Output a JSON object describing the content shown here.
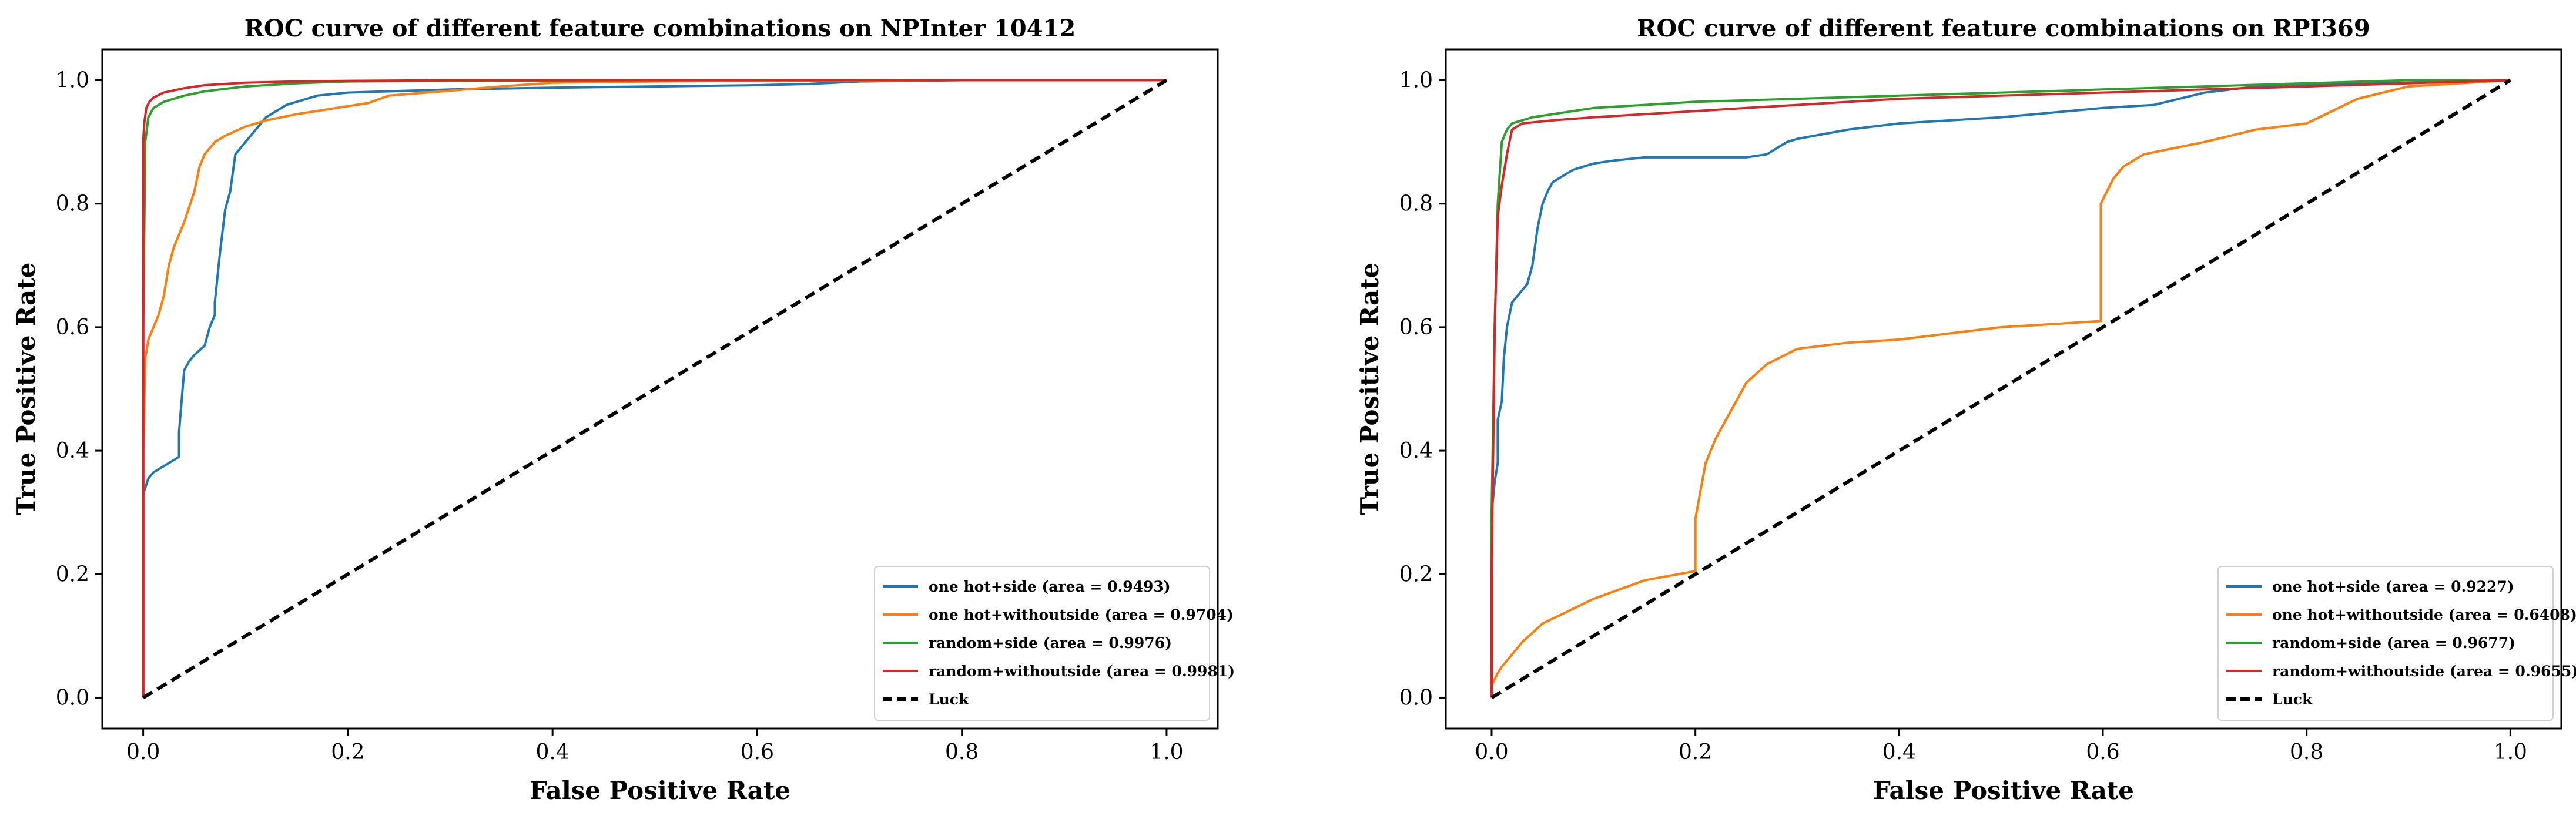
{
  "figure": {
    "charts": [
      {
        "type": "line",
        "title": "ROC curve of different feature combinations on NPInter 10412",
        "xlabel": "False Positive Rate",
        "ylabel": "True Positive Rate",
        "xlim": [
          -0.04,
          1.05
        ],
        "ylim": [
          -0.05,
          1.05
        ],
        "xticks": [
          "0.0",
          "0.2",
          "0.4",
          "0.6",
          "0.8",
          "1.0"
        ],
        "yticks": [
          "0.0",
          "0.2",
          "0.4",
          "0.6",
          "0.8",
          "1.0"
        ],
        "grid": false,
        "legend_position": "lower-right",
        "series": [
          {
            "name": "one hot+side (area = 0.9493)",
            "color": "#1f77b4",
            "x": [
              0,
              0,
              0.002,
              0.005,
              0.01,
              0.02,
              0.03,
              0.035,
              0.035,
              0.04,
              0.045,
              0.05,
              0.06,
              0.065,
              0.07,
              0.07,
              0.075,
              0.08,
              0.085,
              0.09,
              0.1,
              0.12,
              0.14,
              0.17,
              0.2,
              0.3,
              0.4,
              0.5,
              0.6,
              0.65,
              0.7,
              0.8,
              1.0
            ],
            "y": [
              0,
              0.33,
              0.34,
              0.355,
              0.365,
              0.375,
              0.385,
              0.39,
              0.43,
              0.53,
              0.545,
              0.555,
              0.57,
              0.6,
              0.62,
              0.64,
              0.72,
              0.79,
              0.82,
              0.88,
              0.9,
              0.94,
              0.96,
              0.975,
              0.98,
              0.985,
              0.988,
              0.99,
              0.992,
              0.994,
              0.998,
              1.0,
              1.0
            ]
          },
          {
            "name": "one hot+withoutside (area = 0.9704)",
            "color": "#ff7f0e",
            "x": [
              0,
              0,
              0.002,
              0.005,
              0.01,
              0.015,
              0.02,
              0.025,
              0.03,
              0.04,
              0.05,
              0.055,
              0.06,
              0.07,
              0.08,
              0.1,
              0.12,
              0.15,
              0.2,
              0.22,
              0.24,
              0.3,
              0.35,
              0.4,
              0.5,
              0.6,
              0.8,
              1.0
            ],
            "y": [
              0,
              0.4,
              0.55,
              0.58,
              0.6,
              0.62,
              0.65,
              0.7,
              0.73,
              0.77,
              0.82,
              0.86,
              0.88,
              0.9,
              0.91,
              0.925,
              0.935,
              0.945,
              0.958,
              0.963,
              0.975,
              0.983,
              0.99,
              0.996,
              0.998,
              0.999,
              1.0,
              1.0
            ]
          },
          {
            "name": "random+side (area = 0.9976)",
            "color": "#2ca02c",
            "x": [
              0,
              0,
              0.002,
              0.005,
              0.01,
              0.02,
              0.04,
              0.06,
              0.1,
              0.15,
              0.2,
              0.3,
              0.5,
              1.0
            ],
            "y": [
              0,
              0.6,
              0.9,
              0.94,
              0.955,
              0.965,
              0.975,
              0.982,
              0.99,
              0.995,
              0.998,
              0.999,
              1.0,
              1.0
            ]
          },
          {
            "name": "random+withoutside (area = 0.9981)",
            "color": "#d62728",
            "x": [
              0,
              0,
              0.001,
              0.003,
              0.006,
              0.01,
              0.02,
              0.04,
              0.06,
              0.1,
              0.15,
              0.2,
              0.3,
              1.0
            ],
            "y": [
              0,
              0.9,
              0.93,
              0.955,
              0.965,
              0.972,
              0.98,
              0.987,
              0.992,
              0.996,
              0.998,
              0.999,
              1.0,
              1.0
            ]
          },
          {
            "name": "Luck",
            "color": "#000000",
            "dashed": true,
            "x": [
              0,
              1
            ],
            "y": [
              0,
              1
            ]
          }
        ]
      },
      {
        "type": "line",
        "title": "ROC curve of different feature combinations on RPI369",
        "xlabel": "False Positive Rate",
        "ylabel": "True Positive Rate",
        "xlim": [
          -0.045,
          1.05
        ],
        "ylim": [
          -0.05,
          1.05
        ],
        "xticks": [
          "0.0",
          "0.2",
          "0.4",
          "0.6",
          "0.8",
          "1.0"
        ],
        "yticks": [
          "0.0",
          "0.2",
          "0.4",
          "0.6",
          "0.8",
          "1.0"
        ],
        "grid": false,
        "legend_position": "lower-right",
        "series": [
          {
            "name": "one hot+side (area = 0.9227)",
            "color": "#1f77b4",
            "x": [
              0,
              0,
              0.003,
              0.006,
              0.006,
              0.01,
              0.012,
              0.015,
              0.02,
              0.025,
              0.03,
              0.035,
              0.04,
              0.045,
              0.05,
              0.055,
              0.06,
              0.07,
              0.08,
              0.1,
              0.12,
              0.15,
              0.2,
              0.25,
              0.27,
              0.29,
              0.3,
              0.35,
              0.4,
              0.5,
              0.6,
              0.65,
              0.7,
              0.75,
              1.0
            ],
            "y": [
              0,
              0.3,
              0.35,
              0.38,
              0.45,
              0.48,
              0.55,
              0.6,
              0.64,
              0.65,
              0.66,
              0.67,
              0.7,
              0.76,
              0.8,
              0.82,
              0.835,
              0.845,
              0.855,
              0.865,
              0.87,
              0.875,
              0.875,
              0.875,
              0.88,
              0.9,
              0.905,
              0.92,
              0.93,
              0.94,
              0.955,
              0.96,
              0.98,
              0.99,
              1.0
            ]
          },
          {
            "name": "one hot+withoutside (area = 0.6408)",
            "color": "#ff7f0e",
            "x": [
              0,
              0,
              0.003,
              0.006,
              0.01,
              0.015,
              0.02,
              0.03,
              0.05,
              0.1,
              0.15,
              0.2,
              0.2,
              0.21,
              0.22,
              0.23,
              0.25,
              0.27,
              0.3,
              0.35,
              0.4,
              0.45,
              0.5,
              0.55,
              0.598,
              0.598,
              0.61,
              0.62,
              0.64,
              0.7,
              0.75,
              0.8,
              0.85,
              0.9,
              1.0
            ],
            "y": [
              0,
              0.02,
              0.03,
              0.04,
              0.05,
              0.06,
              0.07,
              0.09,
              0.12,
              0.16,
              0.19,
              0.205,
              0.29,
              0.38,
              0.42,
              0.45,
              0.51,
              0.54,
              0.565,
              0.575,
              0.58,
              0.59,
              0.6,
              0.605,
              0.61,
              0.8,
              0.84,
              0.86,
              0.88,
              0.9,
              0.92,
              0.93,
              0.97,
              0.99,
              1.0
            ]
          },
          {
            "name": "random+side (area = 0.9677)",
            "color": "#2ca02c",
            "x": [
              0,
              0,
              0.003,
              0.006,
              0.01,
              0.015,
              0.02,
              0.04,
              0.06,
              0.1,
              0.15,
              0.2,
              0.3,
              0.4,
              0.5,
              0.6,
              0.7,
              0.8,
              0.9,
              1.0
            ],
            "y": [
              0,
              0.3,
              0.6,
              0.8,
              0.9,
              0.92,
              0.93,
              0.94,
              0.945,
              0.955,
              0.96,
              0.965,
              0.97,
              0.975,
              0.98,
              0.985,
              0.99,
              0.995,
              1.0,
              1.0
            ]
          },
          {
            "name": "random+withoutside (area = 0.9655)",
            "color": "#d62728",
            "x": [
              0,
              0,
              0.003,
              0.006,
              0.01,
              0.015,
              0.02,
              0.03,
              0.06,
              0.1,
              0.2,
              0.25,
              0.3,
              0.4,
              0.5,
              0.6,
              0.7,
              0.8,
              0.9,
              1.0
            ],
            "y": [
              0,
              0.2,
              0.6,
              0.78,
              0.83,
              0.88,
              0.92,
              0.93,
              0.935,
              0.94,
              0.95,
              0.955,
              0.96,
              0.97,
              0.975,
              0.98,
              0.985,
              0.99,
              0.995,
              1.0
            ]
          },
          {
            "name": "Luck",
            "color": "#000000",
            "dashed": true,
            "x": [
              0,
              1
            ],
            "y": [
              0,
              1
            ]
          }
        ]
      }
    ]
  }
}
